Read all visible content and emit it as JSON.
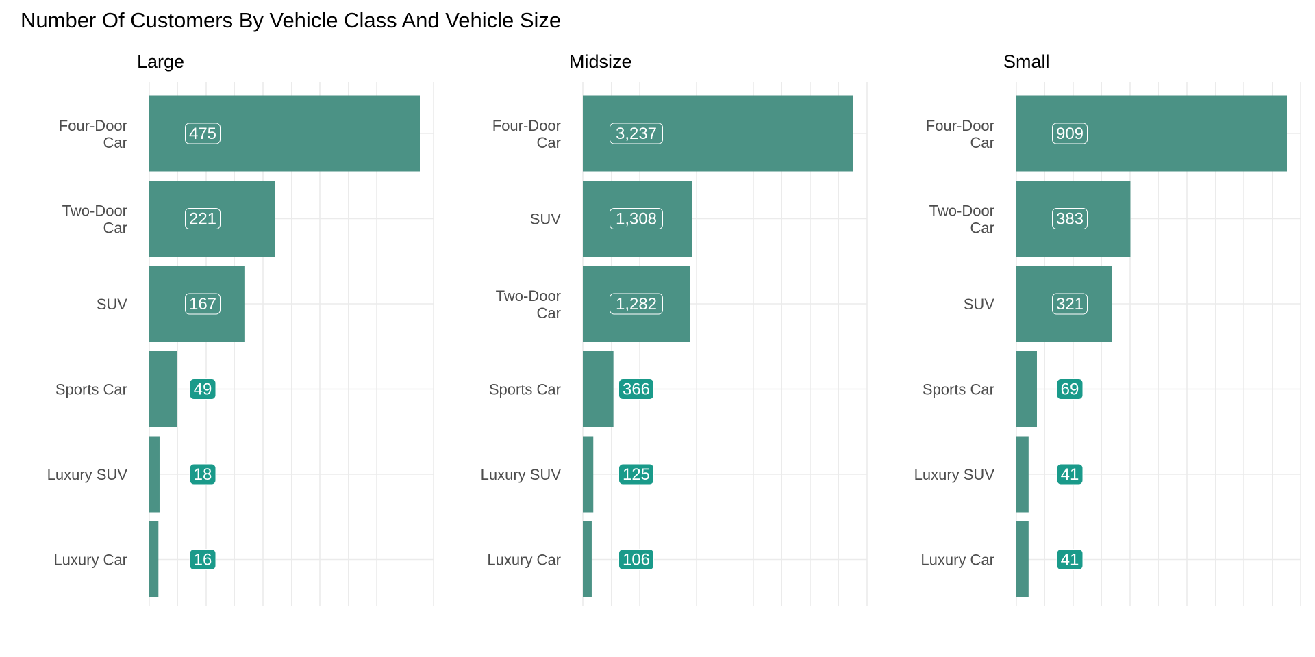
{
  "chart_data": {
    "type": "bar",
    "orientation": "horizontal",
    "title": "Number Of Customers By Vehicle Class And Vehicle Size",
    "bar_color": "#4b9285",
    "label_color": "#1a9a8a",
    "grid": true,
    "facets": [
      {
        "name": "Large",
        "categories": [
          "Four-Door Car",
          "Two-Door Car",
          "SUV",
          "Sports Car",
          "Luxury SUV",
          "Luxury Car"
        ],
        "labels": [
          "475",
          "221",
          "167",
          "49",
          "18",
          "16"
        ],
        "values": [
          475,
          221,
          167,
          49,
          18,
          16
        ]
      },
      {
        "name": "Midsize",
        "categories": [
          "Four-Door Car",
          "SUV",
          "Two-Door Car",
          "Sports Car",
          "Luxury SUV",
          "Luxury Car"
        ],
        "labels": [
          "3,237",
          "1,308",
          "1,282",
          "366",
          "125",
          "106"
        ],
        "values": [
          3237,
          1308,
          1282,
          366,
          125,
          106
        ]
      },
      {
        "name": "Small",
        "categories": [
          "Four-Door Car",
          "Two-Door Car",
          "SUV",
          "Sports Car",
          "Luxury SUV",
          "Luxury Car"
        ],
        "labels": [
          "909",
          "383",
          "321",
          "69",
          "41",
          "41"
        ],
        "values": [
          909,
          383,
          321,
          69,
          41,
          41
        ]
      }
    ]
  }
}
